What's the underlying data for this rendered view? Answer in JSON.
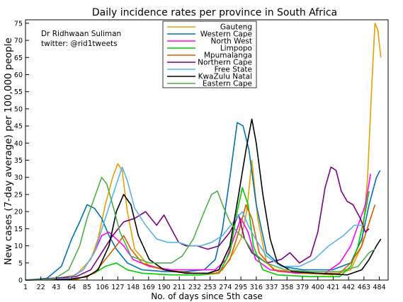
{
  "chart_data": {
    "type": "line",
    "title": "Daily incidence rates per province in South Africa",
    "xlabel": "No. of days since 5th case",
    "ylabel": "New cases (7-day average) per 100,000 people",
    "annotations": [
      "Dr Ridhwaan Suliman",
      "twitter: @rid1tweets"
    ],
    "xlim": [
      1,
      496
    ],
    "ylim": [
      0,
      76
    ],
    "xticks": [
      1,
      22,
      43,
      64,
      85,
      106,
      127,
      148,
      169,
      190,
      211,
      232,
      253,
      274,
      295,
      316,
      337,
      358,
      379,
      400,
      421,
      442,
      463,
      484
    ],
    "yticks": [
      0,
      5,
      10,
      15,
      20,
      25,
      30,
      35,
      40,
      45,
      50,
      55,
      60,
      65,
      70,
      75
    ],
    "grid": false,
    "legend_position": "top-center",
    "series": [
      {
        "name": "Gauteng",
        "color": "#e69f00",
        "points": [
          [
            1,
            0
          ],
          [
            40,
            0.3
          ],
          [
            70,
            1.5
          ],
          [
            90,
            6
          ],
          [
            100,
            12
          ],
          [
            110,
            22
          ],
          [
            120,
            30
          ],
          [
            127,
            34
          ],
          [
            133,
            32
          ],
          [
            140,
            20
          ],
          [
            150,
            9
          ],
          [
            170,
            4
          ],
          [
            200,
            2.5
          ],
          [
            230,
            2
          ],
          [
            260,
            2
          ],
          [
            270,
            3
          ],
          [
            285,
            8
          ],
          [
            295,
            12
          ],
          [
            303,
            20
          ],
          [
            310,
            35
          ],
          [
            318,
            18
          ],
          [
            330,
            5
          ],
          [
            345,
            2.5
          ],
          [
            380,
            2
          ],
          [
            420,
            1.5
          ],
          [
            445,
            3
          ],
          [
            460,
            10
          ],
          [
            468,
            30
          ],
          [
            474,
            58
          ],
          [
            478,
            75
          ],
          [
            482,
            73
          ],
          [
            486,
            65
          ]
        ]
      },
      {
        "name": "Western Cape",
        "color": "#0072b2",
        "points": [
          [
            1,
            0
          ],
          [
            30,
            0.5
          ],
          [
            50,
            4
          ],
          [
            64,
            12
          ],
          [
            75,
            17
          ],
          [
            85,
            22
          ],
          [
            95,
            21
          ],
          [
            105,
            18
          ],
          [
            115,
            13
          ],
          [
            125,
            9
          ],
          [
            140,
            5
          ],
          [
            160,
            3
          ],
          [
            190,
            2.5
          ],
          [
            220,
            2.5
          ],
          [
            245,
            3
          ],
          [
            260,
            6
          ],
          [
            270,
            15
          ],
          [
            280,
            30
          ],
          [
            290,
            46
          ],
          [
            298,
            45
          ],
          [
            306,
            38
          ],
          [
            316,
            22
          ],
          [
            330,
            8
          ],
          [
            350,
            4
          ],
          [
            380,
            3
          ],
          [
            420,
            3
          ],
          [
            445,
            5
          ],
          [
            460,
            12
          ],
          [
            470,
            22
          ],
          [
            480,
            30
          ],
          [
            485,
            32
          ]
        ]
      },
      {
        "name": "North West",
        "color": "#ff00ff",
        "points": [
          [
            1,
            0
          ],
          [
            60,
            0.5
          ],
          [
            80,
            3
          ],
          [
            95,
            8
          ],
          [
            105,
            13
          ],
          [
            115,
            14
          ],
          [
            125,
            12
          ],
          [
            135,
            10
          ],
          [
            148,
            6
          ],
          [
            170,
            4
          ],
          [
            200,
            3
          ],
          [
            230,
            3
          ],
          [
            260,
            3
          ],
          [
            275,
            6
          ],
          [
            285,
            12
          ],
          [
            295,
            18
          ],
          [
            305,
            14
          ],
          [
            315,
            6
          ],
          [
            335,
            3
          ],
          [
            370,
            2
          ],
          [
            410,
            2
          ],
          [
            430,
            5
          ],
          [
            445,
            10
          ],
          [
            455,
            16
          ],
          [
            465,
            22
          ],
          [
            472,
            31
          ]
        ]
      },
      {
        "name": "Limpopo",
        "color": "#00cc00",
        "points": [
          [
            1,
            0
          ],
          [
            70,
            0.2
          ],
          [
            95,
            2
          ],
          [
            110,
            4
          ],
          [
            125,
            5
          ],
          [
            140,
            3
          ],
          [
            160,
            2
          ],
          [
            200,
            1.5
          ],
          [
            240,
            1.5
          ],
          [
            265,
            2
          ],
          [
            280,
            8
          ],
          [
            290,
            20
          ],
          [
            297,
            27
          ],
          [
            305,
            22
          ],
          [
            312,
            10
          ],
          [
            325,
            3
          ],
          [
            345,
            1.5
          ],
          [
            390,
            1
          ],
          [
            430,
            1
          ],
          [
            445,
            4
          ],
          [
            455,
            10
          ],
          [
            465,
            20
          ],
          [
            470,
            26
          ]
        ]
      },
      {
        "name": "Mpumalanga",
        "color": "#d55e00",
        "points": [
          [
            1,
            0
          ],
          [
            70,
            0.2
          ],
          [
            95,
            2
          ],
          [
            110,
            6
          ],
          [
            125,
            10
          ],
          [
            135,
            13
          ],
          [
            145,
            9
          ],
          [
            160,
            5
          ],
          [
            190,
            3
          ],
          [
            230,
            2
          ],
          [
            265,
            2
          ],
          [
            280,
            6
          ],
          [
            292,
            14
          ],
          [
            302,
            22
          ],
          [
            310,
            18
          ],
          [
            320,
            8
          ],
          [
            340,
            3
          ],
          [
            380,
            2
          ],
          [
            430,
            2
          ],
          [
            445,
            5
          ],
          [
            460,
            10
          ],
          [
            472,
            18
          ],
          [
            478,
            22
          ]
        ]
      },
      {
        "name": "Northern Cape",
        "color": "#7b0082",
        "points": [
          [
            1,
            0
          ],
          [
            70,
            1
          ],
          [
            90,
            3
          ],
          [
            105,
            8
          ],
          [
            120,
            13
          ],
          [
            135,
            17
          ],
          [
            150,
            18
          ],
          [
            165,
            20
          ],
          [
            180,
            16
          ],
          [
            190,
            19
          ],
          [
            200,
            15
          ],
          [
            210,
            11
          ],
          [
            220,
            10
          ],
          [
            235,
            10
          ],
          [
            250,
            9
          ],
          [
            265,
            10
          ],
          [
            280,
            14
          ],
          [
            292,
            19
          ],
          [
            300,
            12
          ],
          [
            310,
            8
          ],
          [
            330,
            5
          ],
          [
            350,
            6
          ],
          [
            362,
            8
          ],
          [
            375,
            5
          ],
          [
            390,
            7
          ],
          [
            400,
            14
          ],
          [
            410,
            27
          ],
          [
            418,
            33
          ],
          [
            425,
            32
          ],
          [
            432,
            26
          ],
          [
            440,
            23
          ],
          [
            448,
            22
          ],
          [
            458,
            18
          ],
          [
            465,
            14
          ],
          [
            470,
            15
          ]
        ]
      },
      {
        "name": "Free State",
        "color": "#56b4e9",
        "points": [
          [
            1,
            0
          ],
          [
            60,
            0.5
          ],
          [
            80,
            3
          ],
          [
            95,
            8
          ],
          [
            110,
            18
          ],
          [
            125,
            28
          ],
          [
            133,
            33
          ],
          [
            140,
            29
          ],
          [
            150,
            21
          ],
          [
            165,
            16
          ],
          [
            180,
            12
          ],
          [
            195,
            11
          ],
          [
            210,
            11
          ],
          [
            225,
            10
          ],
          [
            240,
            10
          ],
          [
            255,
            11
          ],
          [
            270,
            13
          ],
          [
            285,
            17
          ],
          [
            297,
            20
          ],
          [
            305,
            16
          ],
          [
            315,
            12
          ],
          [
            330,
            7
          ],
          [
            350,
            4
          ],
          [
            375,
            4
          ],
          [
            395,
            6
          ],
          [
            415,
            10
          ],
          [
            435,
            13
          ],
          [
            450,
            16
          ],
          [
            462,
            16
          ]
        ]
      },
      {
        "name": "KwaZulu Natal",
        "color": "#000000",
        "points": [
          [
            1,
            0
          ],
          [
            60,
            0.2
          ],
          [
            85,
            1
          ],
          [
            100,
            3
          ],
          [
            115,
            10
          ],
          [
            125,
            20
          ],
          [
            135,
            25
          ],
          [
            145,
            22
          ],
          [
            155,
            13
          ],
          [
            170,
            6
          ],
          [
            190,
            3
          ],
          [
            220,
            2
          ],
          [
            250,
            2
          ],
          [
            265,
            3
          ],
          [
            280,
            10
          ],
          [
            292,
            25
          ],
          [
            302,
            38
          ],
          [
            310,
            47
          ],
          [
            316,
            40
          ],
          [
            325,
            25
          ],
          [
            335,
            12
          ],
          [
            345,
            5
          ],
          [
            365,
            2.5
          ],
          [
            400,
            2
          ],
          [
            440,
            1.5
          ],
          [
            460,
            3
          ],
          [
            470,
            6
          ],
          [
            480,
            10
          ],
          [
            486,
            12
          ]
        ]
      },
      {
        "name": "Eastern Cape",
        "color": "#4daf4a",
        "points": [
          [
            1,
            0
          ],
          [
            40,
            0.3
          ],
          [
            60,
            3
          ],
          [
            75,
            10
          ],
          [
            85,
            18
          ],
          [
            95,
            24
          ],
          [
            105,
            30
          ],
          [
            112,
            28
          ],
          [
            120,
            22
          ],
          [
            130,
            14
          ],
          [
            145,
            7
          ],
          [
            170,
            5
          ],
          [
            200,
            5
          ],
          [
            215,
            7
          ],
          [
            230,
            12
          ],
          [
            245,
            20
          ],
          [
            255,
            25
          ],
          [
            263,
            26
          ],
          [
            270,
            22
          ],
          [
            280,
            17
          ],
          [
            290,
            14
          ],
          [
            300,
            12
          ],
          [
            312,
            8
          ],
          [
            330,
            5
          ],
          [
            355,
            3
          ],
          [
            390,
            2.5
          ],
          [
            430,
            2.5
          ],
          [
            455,
            4
          ],
          [
            470,
            8
          ],
          [
            478,
            9
          ]
        ]
      }
    ]
  }
}
